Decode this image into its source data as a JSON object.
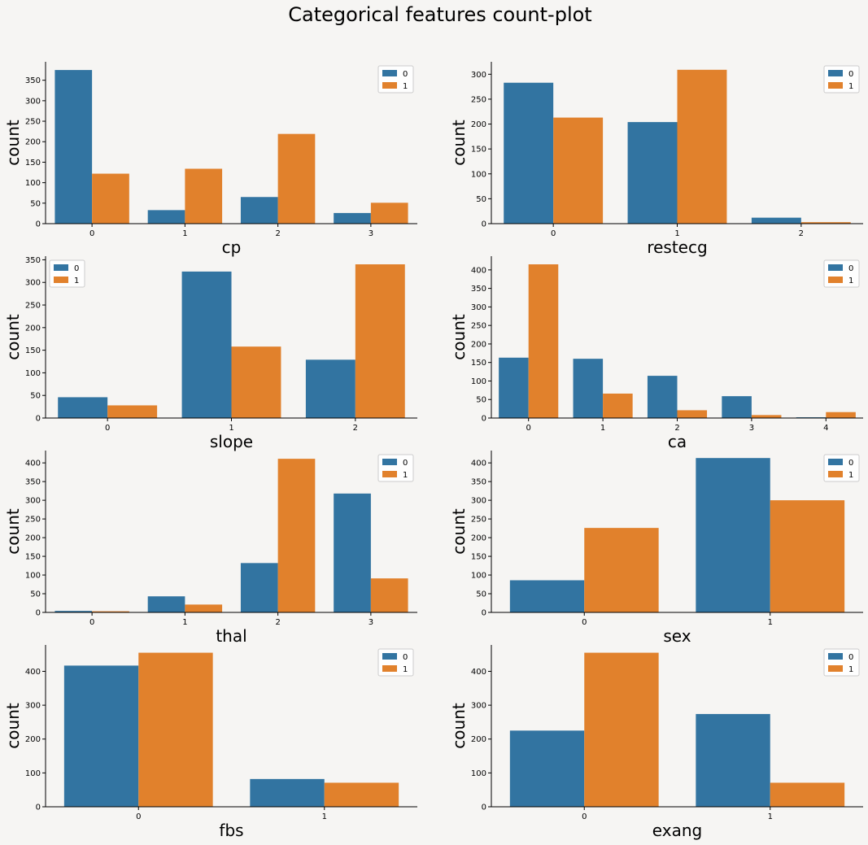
{
  "figure": {
    "title": "Categorical features count-plot",
    "colors": {
      "0": "#3274a1",
      "1": "#e1812c"
    }
  },
  "chart_data": [
    {
      "type": "bar",
      "xlabel": "cp",
      "ylabel": "count",
      "categories": [
        "0",
        "1",
        "2",
        "3"
      ],
      "yticks": [
        0,
        50,
        100,
        150,
        200,
        250,
        300,
        350
      ],
      "ylim": [
        0,
        395
      ],
      "legend": "top-right",
      "series": [
        {
          "name": "0",
          "values": [
            375,
            33,
            65,
            26
          ]
        },
        {
          "name": "1",
          "values": [
            122,
            134,
            219,
            51
          ]
        }
      ]
    },
    {
      "type": "bar",
      "xlabel": "restecg",
      "ylabel": "count",
      "categories": [
        "0",
        "1",
        "2"
      ],
      "yticks": [
        0,
        50,
        100,
        150,
        200,
        250,
        300
      ],
      "ylim": [
        0,
        325
      ],
      "legend": "top-right",
      "series": [
        {
          "name": "0",
          "values": [
            283,
            204,
            12
          ]
        },
        {
          "name": "1",
          "values": [
            213,
            309,
            3
          ]
        }
      ]
    },
    {
      "type": "bar",
      "xlabel": "slope",
      "ylabel": "count",
      "categories": [
        "0",
        "1",
        "2"
      ],
      "yticks": [
        0,
        50,
        100,
        150,
        200,
        250,
        300,
        350
      ],
      "ylim": [
        0,
        358
      ],
      "legend": "top-left",
      "series": [
        {
          "name": "0",
          "values": [
            46,
            324,
            129
          ]
        },
        {
          "name": "1",
          "values": [
            28,
            158,
            340
          ]
        }
      ]
    },
    {
      "type": "bar",
      "xlabel": "ca",
      "ylabel": "count",
      "categories": [
        "0",
        "1",
        "2",
        "3",
        "4"
      ],
      "yticks": [
        0,
        50,
        100,
        150,
        200,
        250,
        300,
        350,
        400
      ],
      "ylim": [
        0,
        437
      ],
      "legend": "top-right",
      "series": [
        {
          "name": "0",
          "values": [
            163,
            160,
            114,
            59,
            2
          ]
        },
        {
          "name": "1",
          "values": [
            415,
            66,
            21,
            8,
            16
          ]
        }
      ]
    },
    {
      "type": "bar",
      "xlabel": "thal",
      "ylabel": "count",
      "categories": [
        "0",
        "1",
        "2",
        "3"
      ],
      "yticks": [
        0,
        50,
        100,
        150,
        200,
        250,
        300,
        350,
        400
      ],
      "ylim": [
        0,
        433
      ],
      "legend": "top-right",
      "series": [
        {
          "name": "0",
          "values": [
            4,
            43,
            132,
            318
          ]
        },
        {
          "name": "1",
          "values": [
            3,
            21,
            411,
            91
          ]
        }
      ]
    },
    {
      "type": "bar",
      "xlabel": "sex",
      "ylabel": "count",
      "categories": [
        "0",
        "1"
      ],
      "yticks": [
        0,
        50,
        100,
        150,
        200,
        250,
        300,
        350,
        400
      ],
      "ylim": [
        0,
        433
      ],
      "legend": "top-right",
      "series": [
        {
          "name": "0",
          "values": [
            86,
            413
          ]
        },
        {
          "name": "1",
          "values": [
            226,
            300
          ]
        }
      ]
    },
    {
      "type": "bar",
      "xlabel": "fbs",
      "ylabel": "count",
      "categories": [
        "0",
        "1"
      ],
      "yticks": [
        0,
        100,
        200,
        300,
        400
      ],
      "ylim": [
        0,
        478
      ],
      "legend": "top-right",
      "series": [
        {
          "name": "0",
          "values": [
            417,
            82
          ]
        },
        {
          "name": "1",
          "values": [
            455,
            71
          ]
        }
      ]
    },
    {
      "type": "bar",
      "xlabel": "exang",
      "ylabel": "count",
      "categories": [
        "0",
        "1"
      ],
      "yticks": [
        0,
        100,
        200,
        300,
        400
      ],
      "ylim": [
        0,
        478
      ],
      "legend": "top-right",
      "series": [
        {
          "name": "0",
          "values": [
            225,
            274
          ]
        },
        {
          "name": "1",
          "values": [
            455,
            71
          ]
        }
      ]
    }
  ]
}
